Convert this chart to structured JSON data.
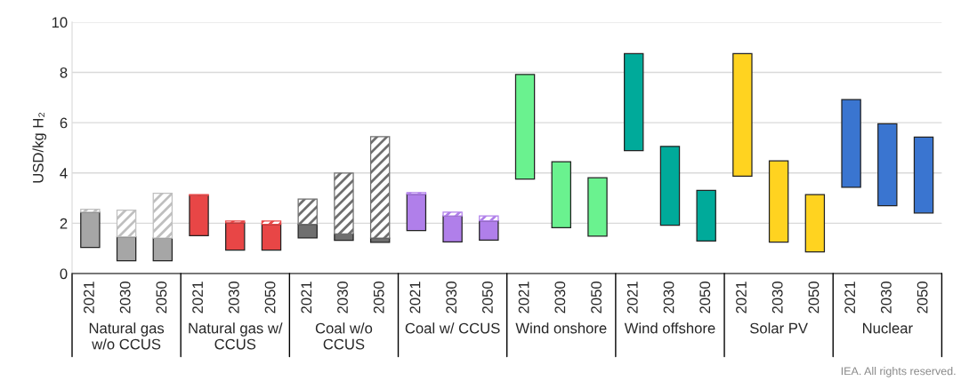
{
  "chart_data": {
    "type": "bar",
    "stacked": true,
    "ylabel": "USD/kg H₂",
    "categories": [
      "2021",
      "2030",
      "2050",
      "2021",
      "2030",
      "2050",
      "2021",
      "2030",
      "2050",
      "2021",
      "2030",
      "2050",
      "2021",
      "2030",
      "2050",
      "2021",
      "2030",
      "2050",
      "2021",
      "2030",
      "2050",
      "2021",
      "2030",
      "2050"
    ],
    "series": [
      {
        "base": [
          1.04,
          0.51,
          0.51,
          1.51,
          0.93,
          0.93,
          1.42,
          1.32,
          1.24,
          1.71,
          1.26,
          1.33,
          3.76,
          1.82,
          1.49,
          4.89,
          1.92,
          1.29,
          3.87,
          1.25,
          0.86,
          3.43,
          2.7,
          2.41
        ],
        "colors": [
          "#a6a6a6",
          "#a6a6a6",
          "#a6a6a6",
          "#e84646",
          "#e84646",
          "#e84646",
          "#6f6f6f",
          "#6f6f6f",
          "#6f6f6f",
          "#b07fea",
          "#b07fea",
          "#b07fea",
          "#6af28f",
          "#6af28f",
          "#6af28f",
          "#00aa9a",
          "#00aa9a",
          "#00aa9a",
          "#ffd320",
          "#ffd320",
          "#ffd320",
          "#3a75d0",
          "#3a75d0",
          "#3a75d0"
        ],
        "values": [
          1.4,
          0.95,
          0.9,
          1.59,
          1.09,
          1.03,
          0.54,
          0.26,
          0.17,
          1.45,
          1.03,
          0.77,
          4.16,
          2.63,
          2.32,
          3.86,
          3.14,
          2.02,
          4.88,
          3.23,
          2.28,
          3.49,
          3.26,
          3.02
        ]
      },
      {
        "colors": [
          "#bfbfbf",
          "#bfbfbf",
          "#bfbfbf",
          "#e84646",
          "#e84646",
          "#e84646",
          "#6f6f6f",
          "#6f6f6f",
          "#6f6f6f",
          "#b07fea",
          "#b07fea",
          "#b07fea",
          null,
          null,
          null,
          null,
          null,
          null,
          null,
          null,
          null,
          null,
          null,
          null
        ],
        "values": [
          0.12,
          1.06,
          1.78,
          0.04,
          0.07,
          0.13,
          1.0,
          2.42,
          4.03,
          0.06,
          0.15,
          0.19,
          null,
          null,
          null,
          null,
          null,
          null,
          null,
          null,
          null,
          null,
          null,
          null
        ]
      }
    ],
    "ylim": [
      0,
      10
    ],
    "yticks": [
      0,
      2,
      4,
      6,
      8,
      10
    ],
    "grid": "y",
    "annotations": [
      "Natural gas\nw/o CCUS",
      "Natural gas w/\nCCUS",
      "Coal w/o\nCCUS",
      "Coal w/ CCUS",
      "Wind onshore",
      "Wind offshore",
      "Solar PV",
      "Nuclear",
      "IEA. All rights reserved."
    ]
  }
}
